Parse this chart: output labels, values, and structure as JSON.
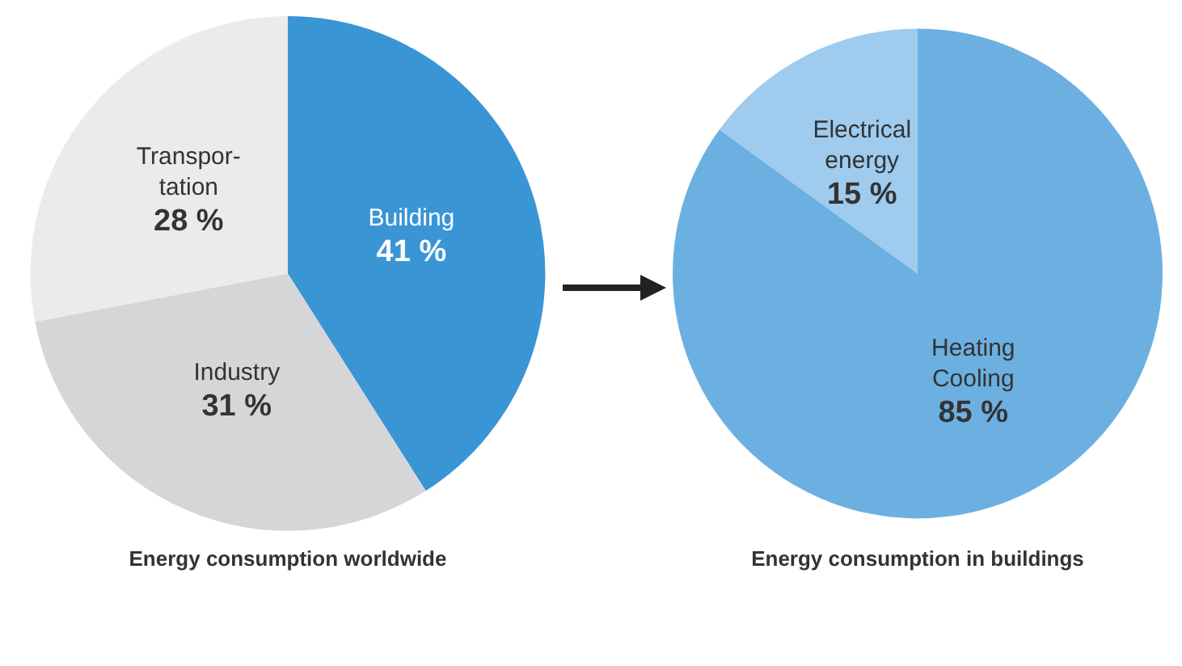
{
  "chart_data": [
    {
      "type": "pie",
      "title": "Energy consumption worldwide",
      "categories": [
        "Building",
        "Industry",
        "Transpor-\ntation"
      ],
      "values": [
        41,
        31,
        28
      ],
      "colors": [
        "#3a95d5",
        "#d5d6d8",
        "#ebebec"
      ],
      "value_labels": [
        "41 %",
        "31 %",
        "28 %"
      ]
    },
    {
      "type": "pie",
      "title": "Energy consumption in buildings",
      "categories": [
        "Heating\nCooling",
        "Electrical\nenergy"
      ],
      "values": [
        85,
        15
      ],
      "colors": [
        "#6cb0e2",
        "#9ecbee"
      ],
      "value_labels": [
        "85 %",
        "15 %"
      ]
    }
  ]
}
